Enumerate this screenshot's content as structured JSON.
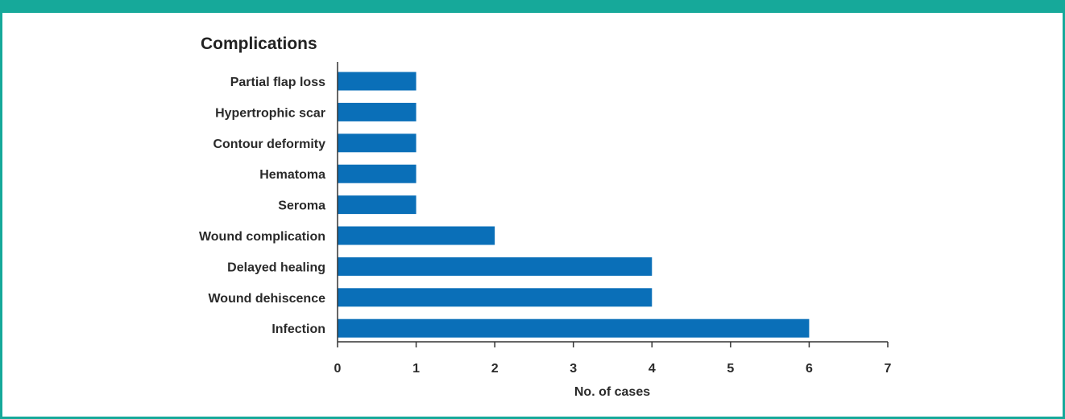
{
  "colors": {
    "frame": "#16a99a",
    "bar": "#0a6fb8",
    "axis": "#333333"
  },
  "chart_data": {
    "type": "bar",
    "orientation": "horizontal",
    "title": "Complications",
    "xlabel": "No. of cases",
    "ylabel": "",
    "categories": [
      "Partial flap loss",
      "Hypertrophic scar",
      "Contour deformity",
      "Hematoma",
      "Seroma",
      "Wound complication",
      "Delayed healing",
      "Wound dehiscence",
      "Infection"
    ],
    "values": [
      1,
      1,
      1,
      1,
      1,
      2,
      4,
      4,
      6
    ],
    "xlim": [
      0,
      7
    ],
    "xticks": [
      0,
      1,
      2,
      3,
      4,
      5,
      6,
      7
    ],
    "grid": false,
    "legend": "none"
  }
}
